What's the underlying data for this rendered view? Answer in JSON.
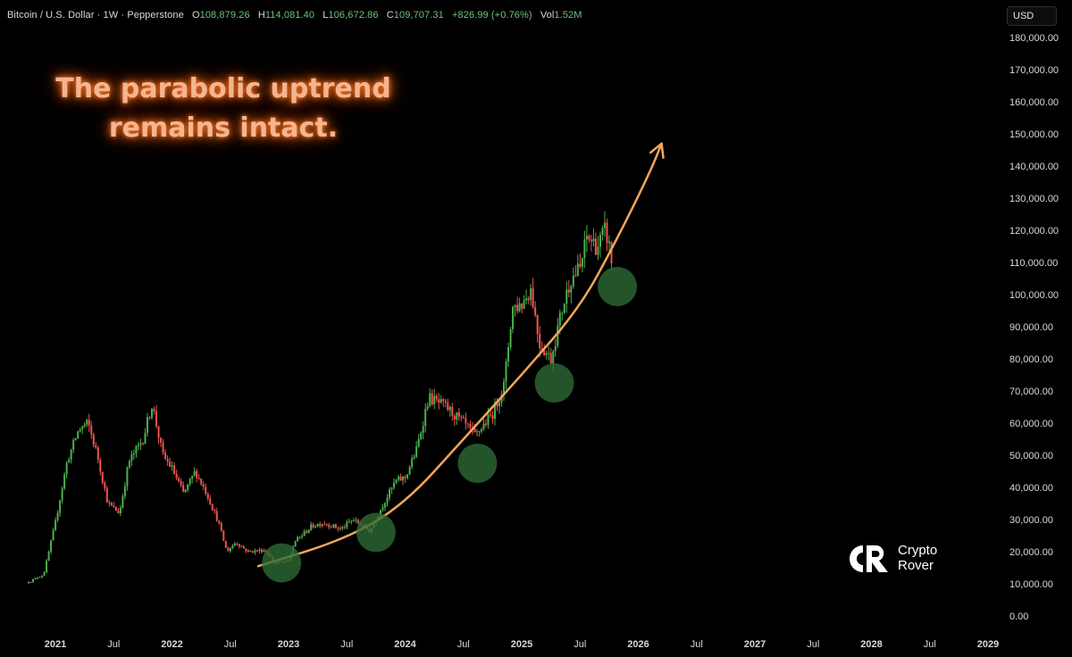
{
  "header": {
    "symbol": "Bitcoin / U.S. Dollar · 1W · Pepperstone",
    "ohlc": [
      {
        "key": "O",
        "value": "108,879.26"
      },
      {
        "key": "H",
        "value": "114,081.40"
      },
      {
        "key": "L",
        "value": "106,672.86"
      },
      {
        "key": "C",
        "value": "109,707.31"
      },
      {
        "key": "",
        "value": "+826.99 (+0.76%)"
      },
      {
        "key": "Vol",
        "value": "1.52M"
      }
    ],
    "currency": "USD"
  },
  "annotation": {
    "line1": "The parabolic uptrend",
    "line2": "remains intact."
  },
  "brand": {
    "line1": "Crypto",
    "line2": "Rover"
  },
  "chart_data": {
    "type": "candlestick",
    "yaxis": {
      "ticks": [
        "180,000.00",
        "170,000.00",
        "160,000.00",
        "150,000.00",
        "140,000.00",
        "130,000.00",
        "120,000.00",
        "110,000.00",
        "100,000.00",
        "90,000.00",
        "80,000.00",
        "70,000.00",
        "60,000.00",
        "50,000.00",
        "40,000.00",
        "30,000.00",
        "20,000.00",
        "10,000.00",
        "0.00"
      ],
      "range": [
        0,
        180000
      ]
    },
    "xaxis": {
      "ticks": [
        {
          "label": "2021",
          "t": 2021.0,
          "bold": true
        },
        {
          "label": "Jul",
          "t": 2021.5,
          "bold": false
        },
        {
          "label": "2022",
          "t": 2022.0,
          "bold": true
        },
        {
          "label": "Jul",
          "t": 2022.5,
          "bold": false
        },
        {
          "label": "2023",
          "t": 2023.0,
          "bold": true
        },
        {
          "label": "Jul",
          "t": 2023.5,
          "bold": false
        },
        {
          "label": "2024",
          "t": 2024.0,
          "bold": true
        },
        {
          "label": "Jul",
          "t": 2024.5,
          "bold": false
        },
        {
          "label": "2025",
          "t": 2025.0,
          "bold": true
        },
        {
          "label": "Jul",
          "t": 2025.5,
          "bold": false
        },
        {
          "label": "2026",
          "t": 2026.0,
          "bold": true
        },
        {
          "label": "Jul",
          "t": 2026.5,
          "bold": false
        },
        {
          "label": "2027",
          "t": 2027.0,
          "bold": true
        },
        {
          "label": "Jul",
          "t": 2027.5,
          "bold": false
        },
        {
          "label": "2028",
          "t": 2028.0,
          "bold": true
        },
        {
          "label": "Jul",
          "t": 2028.5,
          "bold": false
        },
        {
          "label": "2029",
          "t": 2029.0,
          "bold": true
        }
      ]
    },
    "price_path": [
      [
        2020.77,
        10500
      ],
      [
        2020.9,
        13000
      ],
      [
        2021.0,
        29000
      ],
      [
        2021.1,
        48000
      ],
      [
        2021.2,
        58000
      ],
      [
        2021.28,
        60000
      ],
      [
        2021.36,
        50000
      ],
      [
        2021.45,
        35000
      ],
      [
        2021.55,
        32000
      ],
      [
        2021.63,
        48000
      ],
      [
        2021.75,
        55000
      ],
      [
        2021.83,
        66000
      ],
      [
        2021.92,
        50000
      ],
      [
        2022.0,
        46000
      ],
      [
        2022.1,
        38000
      ],
      [
        2022.2,
        45000
      ],
      [
        2022.3,
        38000
      ],
      [
        2022.4,
        29000
      ],
      [
        2022.47,
        20000
      ],
      [
        2022.55,
        23000
      ],
      [
        2022.65,
        20000
      ],
      [
        2022.8,
        20500
      ],
      [
        2022.88,
        16500
      ],
      [
        2023.0,
        17000
      ],
      [
        2023.05,
        23000
      ],
      [
        2023.2,
        28000
      ],
      [
        2023.3,
        29000
      ],
      [
        2023.45,
        27000
      ],
      [
        2023.55,
        30000
      ],
      [
        2023.7,
        26500
      ],
      [
        2023.8,
        34000
      ],
      [
        2023.92,
        42000
      ],
      [
        2024.0,
        43000
      ],
      [
        2024.1,
        52000
      ],
      [
        2024.2,
        68000
      ],
      [
        2024.35,
        65000
      ],
      [
        2024.5,
        60000
      ],
      [
        2024.6,
        56000
      ],
      [
        2024.75,
        63000
      ],
      [
        2024.85,
        72000
      ],
      [
        2024.92,
        96000
      ],
      [
        2025.0,
        97000
      ],
      [
        2025.08,
        102000
      ],
      [
        2025.15,
        85000
      ],
      [
        2025.25,
        80000
      ],
      [
        2025.35,
        96000
      ],
      [
        2025.42,
        105000
      ],
      [
        2025.5,
        108000
      ],
      [
        2025.56,
        118000
      ],
      [
        2025.65,
        115000
      ],
      [
        2025.72,
        120000
      ],
      [
        2025.78,
        109707
      ]
    ],
    "curve": [
      [
        2022.74,
        15500
      ],
      [
        2023.5,
        24000
      ],
      [
        2024.0,
        35000
      ],
      [
        2024.5,
        55000
      ],
      [
        2025.0,
        75000
      ],
      [
        2025.5,
        96000
      ],
      [
        2025.8,
        116000
      ],
      [
        2026.1,
        138000
      ],
      [
        2026.2,
        147000
      ]
    ],
    "highlights": [
      {
        "t": 2022.94,
        "price": 16500
      },
      {
        "t": 2023.75,
        "price": 26000
      },
      {
        "t": 2024.62,
        "price": 47500
      },
      {
        "t": 2025.28,
        "price": 72500
      },
      {
        "t": 2025.82,
        "price": 102500
      }
    ],
    "colors": {
      "up": "#26a69a",
      "upBody": "#4caf50",
      "down": "#ef5350",
      "curve": "#f2a65a",
      "highlight": "#2e6b34"
    }
  }
}
